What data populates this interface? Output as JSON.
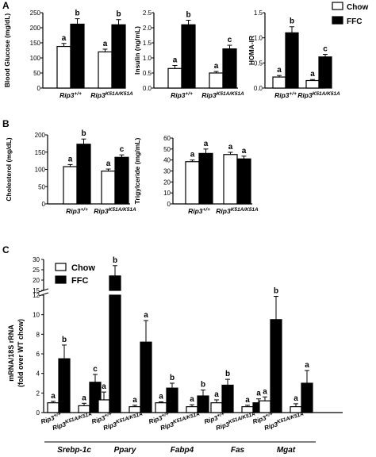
{
  "panel_labels": [
    "A",
    "B",
    "C"
  ],
  "legend": [
    {
      "label": "Chow",
      "color": "#ffffff"
    },
    {
      "label": "FFC",
      "color": "#000000"
    }
  ],
  "colors": {
    "chow": "#ffffff",
    "ffc": "#000000",
    "stroke": "#000000"
  },
  "chart_data": [
    {
      "type": "bar",
      "panel": "A",
      "categories": [
        "Rip3+/+",
        "Rip3K51A/K51A"
      ],
      "ylabel": "Blood Glucose (mg/dL)",
      "ylim": [
        0,
        250
      ],
      "yticks": [
        "0",
        "50",
        "100",
        "150",
        "200",
        "250"
      ],
      "series": [
        {
          "name": "Chow",
          "values": [
            138,
            120
          ],
          "errors": [
            10,
            9
          ],
          "sig": [
            "a",
            "a"
          ]
        },
        {
          "name": "FFC",
          "values": [
            212,
            210
          ],
          "errors": [
            18,
            17
          ],
          "sig": [
            "b",
            "b"
          ]
        }
      ]
    },
    {
      "type": "bar",
      "panel": "A",
      "categories": [
        "Rip3+/+",
        "Rip3K51A/K51A"
      ],
      "ylabel": "Insulin (ng/mL)",
      "ylim": [
        0,
        2.5
      ],
      "yticks": [
        "0.0",
        "0.5",
        "1.0",
        "1.5",
        "2.0",
        "2.5"
      ],
      "series": [
        {
          "name": "Chow",
          "values": [
            0.65,
            0.5
          ],
          "errors": [
            0.1,
            0.05
          ],
          "sig": [
            "a",
            "a"
          ]
        },
        {
          "name": "FFC",
          "values": [
            2.1,
            1.3
          ],
          "errors": [
            0.15,
            0.12
          ],
          "sig": [
            "b",
            "c"
          ]
        }
      ]
    },
    {
      "type": "bar",
      "panel": "A",
      "categories": [
        "Rip3+/+",
        "Rip3K51A/K51A"
      ],
      "ylabel": "HOMA-IR",
      "ylim": [
        0,
        1.5
      ],
      "yticks": [
        "0.0",
        "0.5",
        "1.0",
        "1.5"
      ],
      "series": [
        {
          "name": "Chow",
          "values": [
            0.22,
            0.15
          ],
          "errors": [
            0.03,
            0.02
          ],
          "sig": [
            "a",
            "a"
          ]
        },
        {
          "name": "FFC",
          "values": [
            1.1,
            0.62
          ],
          "errors": [
            0.12,
            0.05
          ],
          "sig": [
            "b",
            "c"
          ]
        }
      ]
    },
    {
      "type": "bar",
      "panel": "B",
      "categories": [
        "Rip3+/+",
        "Rip3K51A/K51A"
      ],
      "ylabel": "Cholesterol (mg/dL)",
      "ylim": [
        0,
        200
      ],
      "yticks": [
        "0",
        "50",
        "100",
        "150",
        "200"
      ],
      "series": [
        {
          "name": "Chow",
          "values": [
            108,
            95
          ],
          "errors": [
            6,
            6
          ],
          "sig": [
            "a",
            "a"
          ]
        },
        {
          "name": "FFC",
          "values": [
            173,
            135
          ],
          "errors": [
            15,
            7
          ],
          "sig": [
            "b",
            "c"
          ]
        }
      ]
    },
    {
      "type": "bar",
      "panel": "B",
      "categories": [
        "Rip3+/+",
        "Rip3K51A/K51A"
      ],
      "ylabel": "Trigylceride (mg/mL)",
      "ylim": [
        0,
        60
      ],
      "yticks": [
        "0",
        "10",
        "20",
        "30",
        "40",
        "50",
        "60"
      ],
      "series": [
        {
          "name": "Chow",
          "values": [
            38.5,
            45
          ],
          "errors": [
            1.5,
            2
          ],
          "sig": [
            "a",
            "a"
          ]
        },
        {
          "name": "FFC",
          "values": [
            46,
            41
          ],
          "errors": [
            4,
            2.5
          ],
          "sig": [
            "a",
            "a"
          ]
        }
      ]
    },
    {
      "type": "bar",
      "panel": "C",
      "ylabel": "mRNA/18S rRNA (fold over WT chow)",
      "genes": [
        "Srebp-1c",
        "Ppary",
        "Fabp4",
        "Fas",
        "Mgat"
      ],
      "subcategories": [
        "Rip3+/+",
        "Rip3K51A/K51A"
      ],
      "yticks": [
        "0",
        "2",
        "4",
        "6",
        "8",
        "10",
        "12",
        "15",
        "20",
        "25",
        "30"
      ],
      "y_axis_break": {
        "lower": [
          0,
          12
        ],
        "upper": [
          15,
          30
        ]
      },
      "series": [
        {
          "name": "Chow",
          "values": [
            1.0,
            0.7,
            1.3,
            0.6,
            1.0,
            0.6,
            1.0,
            0.6,
            1.2,
            0.6
          ],
          "errors": [
            0.15,
            0.25,
            0.8,
            0.15,
            0.1,
            0.2,
            0.3,
            0.15,
            0.4,
            0.3
          ],
          "sig": [
            "a",
            "a",
            "a",
            "a",
            "a",
            "a",
            "a",
            "a",
            "a",
            "a"
          ]
        },
        {
          "name": "FFC",
          "values": [
            5.5,
            3.1,
            22,
            7.2,
            2.5,
            1.7,
            2.8,
            1.0,
            9.5,
            3.0
          ],
          "errors": [
            1.4,
            0.8,
            5,
            2.2,
            0.5,
            0.6,
            0.6,
            0.4,
            2.6,
            1.3
          ],
          "sig": [
            "b",
            "c",
            "b",
            "a",
            "b",
            "b",
            "b",
            "a",
            "b",
            "a"
          ]
        }
      ]
    }
  ]
}
